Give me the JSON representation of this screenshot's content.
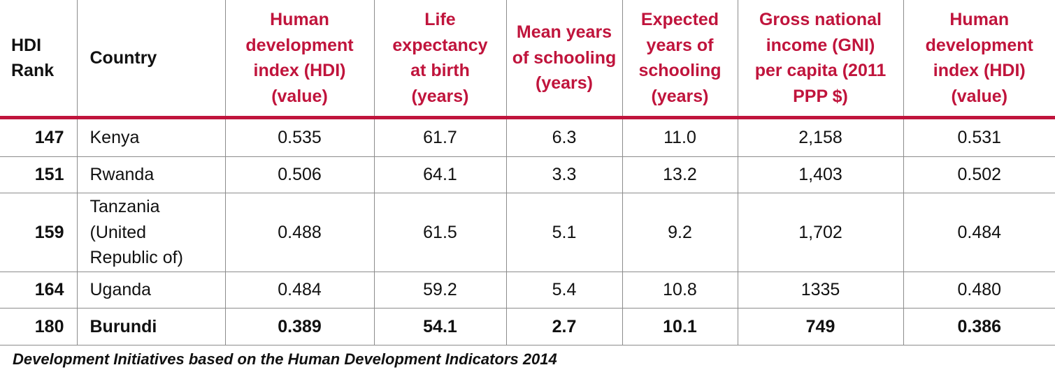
{
  "table": {
    "headers": [
      "HDI Rank",
      "Country",
      "Human development index (HDI) (value)",
      "Life expectancy at birth (years)",
      "Mean years of schooling (years)",
      "Expected years of schooling (years)",
      "Gross national income (GNI) per capita (2011 PPP $)",
      "Human development index (HDI) (value)"
    ],
    "header_color": "#c0143c",
    "rows": [
      [
        "147",
        "Kenya",
        "0.535",
        "61.7",
        "6.3",
        "11.0",
        "2,158",
        "0.531"
      ],
      [
        "151",
        "Rwanda",
        "0.506",
        "64.1",
        "3.3",
        "13.2",
        "1,403",
        "0.502"
      ],
      [
        "159",
        "Tanzania (United Republic of)",
        "0.488",
        "61.5",
        "5.1",
        "9.2",
        "1,702",
        "0.484"
      ],
      [
        "164",
        "Uganda",
        "0.484",
        "59.2",
        "5.4",
        "10.8",
        "1335",
        "0.480"
      ],
      [
        "180",
        "Burundi",
        "0.389",
        "54.1",
        "2.7",
        "10.1",
        "749",
        "0.386"
      ]
    ]
  },
  "source": "Development Initiatives based on the Human Development Indicators 2014"
}
